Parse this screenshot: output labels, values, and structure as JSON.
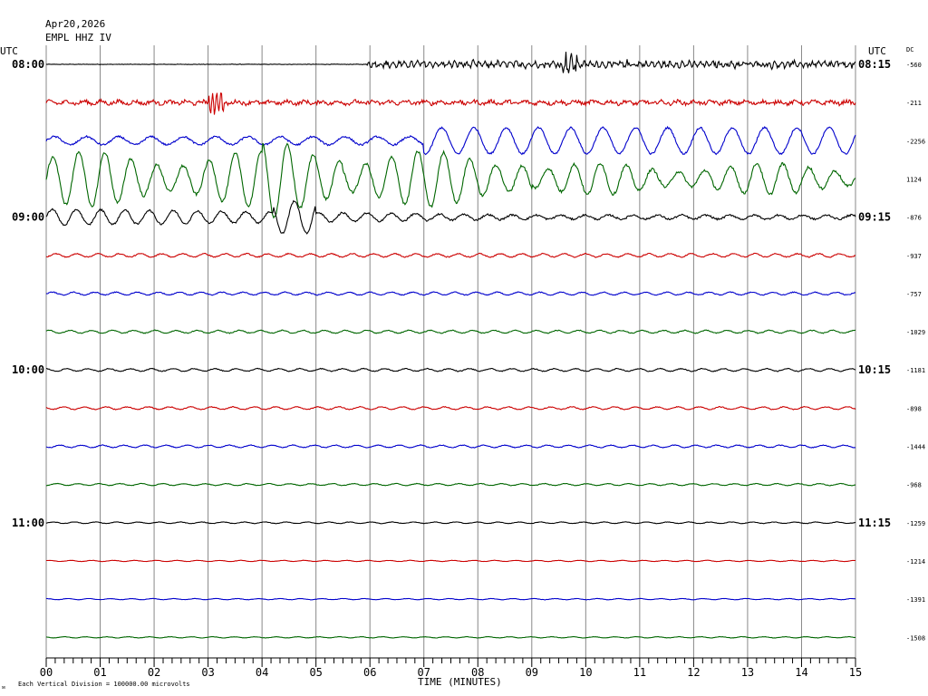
{
  "header": {
    "date": "Apr20,2026",
    "station": "EMPL HHZ IV",
    "left_tz": "UTC",
    "right_tz": "UTC",
    "dc_label": "DC"
  },
  "footer": {
    "scale_note": "Each Vertical Division = 100000.00 microvolts",
    "corner_mark": "ᴍ"
  },
  "colors": {
    "trace_cycle": [
      "#000000",
      "#cc0000",
      "#0000cc",
      "#006600"
    ],
    "grid": "#888888"
  },
  "chart_data": {
    "type": "line",
    "title": "",
    "xlabel": "TIME (MINUTES)",
    "ylabel": "",
    "xlim": [
      0,
      15
    ],
    "x_ticks": [
      "00",
      "01",
      "02",
      "03",
      "04",
      "05",
      "06",
      "07",
      "08",
      "09",
      "10",
      "11",
      "12",
      "13",
      "14",
      "15"
    ],
    "grid": true,
    "left_time_labels": [
      {
        "row": 0,
        "text": "08:00"
      },
      {
        "row": 4,
        "text": "09:00"
      },
      {
        "row": 8,
        "text": "10:00"
      },
      {
        "row": 12,
        "text": "11:00"
      }
    ],
    "right_time_labels": [
      {
        "row": 0,
        "text": "08:15"
      },
      {
        "row": 4,
        "text": "09:15"
      },
      {
        "row": 8,
        "text": "10:15"
      },
      {
        "row": 12,
        "text": "11:15"
      }
    ],
    "series": [
      {
        "dc": "-560",
        "activity": "quake_onset",
        "amplitude": 0.6
      },
      {
        "dc": "-211",
        "activity": "noisy",
        "amplitude": 0.5
      },
      {
        "dc": "-2256",
        "activity": "long_period",
        "amplitude": 0.9
      },
      {
        "dc": "1124",
        "activity": "surface_waves",
        "amplitude": 3.5
      },
      {
        "dc": "-876",
        "activity": "decaying",
        "amplitude": 0.7
      },
      {
        "dc": "-937",
        "activity": "quiet",
        "amplitude": 0.18
      },
      {
        "dc": "-757",
        "activity": "quiet",
        "amplitude": 0.15
      },
      {
        "dc": "-1029",
        "activity": "quiet",
        "amplitude": 0.15
      },
      {
        "dc": "-1181",
        "activity": "quiet",
        "amplitude": 0.14
      },
      {
        "dc": "-898",
        "activity": "quiet",
        "amplitude": 0.14
      },
      {
        "dc": "-1444",
        "activity": "quiet",
        "amplitude": 0.13
      },
      {
        "dc": "-968",
        "activity": "quiet",
        "amplitude": 0.1
      },
      {
        "dc": "-1259",
        "activity": "quiet",
        "amplitude": 0.08
      },
      {
        "dc": "-1214",
        "activity": "quiet",
        "amplitude": 0.06
      },
      {
        "dc": "-1391",
        "activity": "quiet",
        "amplitude": 0.06
      },
      {
        "dc": "-1508",
        "activity": "quiet",
        "amplitude": 0.06
      }
    ]
  }
}
